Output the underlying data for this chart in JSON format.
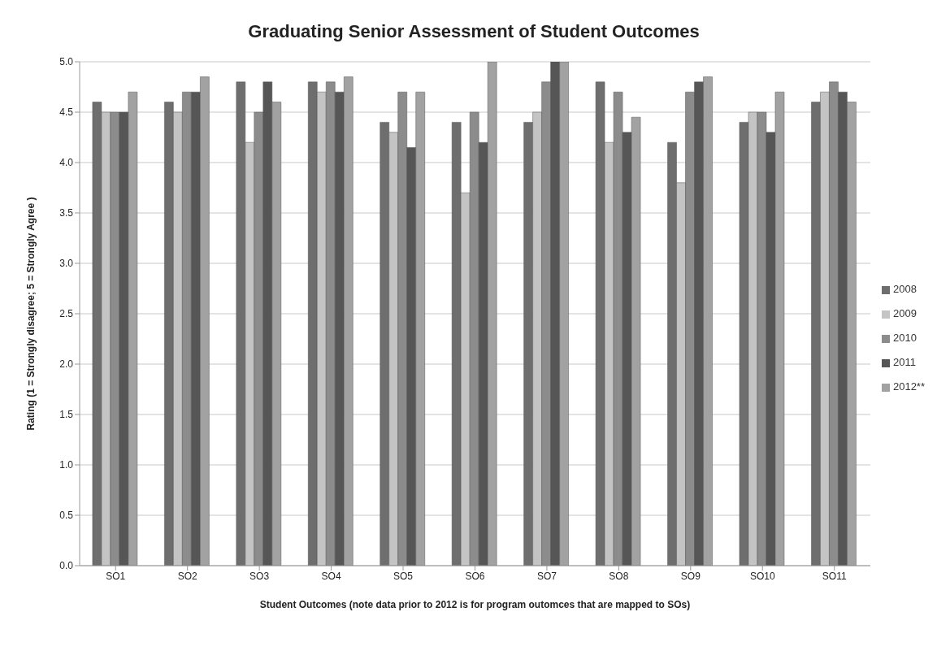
{
  "chart_data": {
    "type": "bar",
    "title": "Graduating Senior Assessment of Student Outcomes",
    "xlabel": "Student Outcomes (note data prior to 2012 is for program outomces that are mapped to SOs)",
    "ylabel": "Rating (1 = Strongly disagree; 5 = Strongly Agree )",
    "categories": [
      "SO1",
      "SO2",
      "SO3",
      "SO4",
      "SO5",
      "SO6",
      "SO7",
      "SO8",
      "SO9",
      "SO10",
      "SO11"
    ],
    "series": [
      {
        "name": "2008",
        "color": "#6e6e6e",
        "values": [
          4.6,
          4.6,
          4.8,
          4.8,
          4.4,
          4.4,
          4.4,
          4.8,
          4.2,
          4.4,
          4.6
        ]
      },
      {
        "name": "2009",
        "color": "#c4c4c4",
        "values": [
          4.5,
          4.5,
          4.2,
          4.7,
          4.3,
          3.7,
          4.5,
          4.2,
          3.8,
          4.5,
          4.7
        ]
      },
      {
        "name": "2010",
        "color": "#8c8c8c",
        "values": [
          4.5,
          4.7,
          4.5,
          4.8,
          4.7,
          4.5,
          4.8,
          4.7,
          4.7,
          4.5,
          4.8
        ]
      },
      {
        "name": "2011",
        "color": "#565656",
        "values": [
          4.5,
          4.7,
          4.8,
          4.7,
          4.15,
          4.2,
          5.0,
          4.3,
          4.8,
          4.3,
          4.7
        ]
      },
      {
        "name": "2012**",
        "color": "#a2a2a2",
        "values": [
          4.7,
          4.85,
          4.6,
          4.85,
          4.7,
          5.0,
          5.0,
          4.45,
          4.85,
          4.7,
          4.6
        ]
      }
    ],
    "ylim": [
      0,
      5
    ],
    "yticks": [
      {
        "value": 0,
        "label": "0.0"
      },
      0.5,
      {
        "value": 1,
        "label": "1.0"
      },
      1.5,
      {
        "value": 2,
        "label": "2.0"
      },
      2.5,
      {
        "value": 3,
        "label": "3.0"
      },
      3.5,
      {
        "value": 4,
        "label": "4.0"
      },
      4.5,
      {
        "value": 5,
        "label": "5.0"
      }
    ],
    "grid": "y",
    "legend": "right"
  }
}
